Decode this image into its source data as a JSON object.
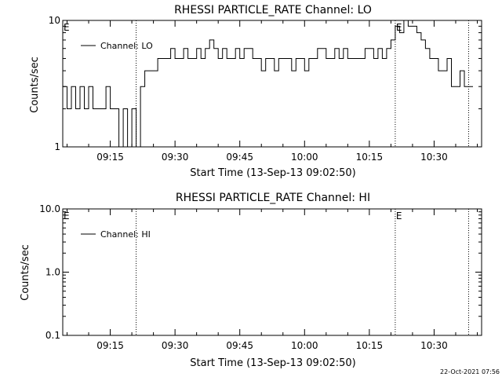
{
  "chart_data": [
    {
      "type": "line",
      "title": "RHESSI PARTICLE_RATE Channel: LO",
      "xlabel": "Start Time (13-Sep-13 09:02:50)",
      "ylabel": "Counts/sec",
      "yscale": "log",
      "ylim": [
        1,
        10
      ],
      "xlim": [
        "09:04",
        "10:41"
      ],
      "xticks": [
        "09:15",
        "09:30",
        "09:45",
        "10:00",
        "10:15",
        "10:30"
      ],
      "yticks": [
        "1",
        "10"
      ],
      "legend": {
        "entries": [
          "Channel: LO"
        ],
        "placement": "top-left"
      },
      "markers": [
        {
          "label": "E",
          "time": "09:04"
        },
        {
          "label": "",
          "time": "09:21"
        },
        {
          "label": "E",
          "time": "10:21"
        },
        {
          "label": "",
          "time": "10:38"
        }
      ],
      "series": [
        {
          "name": "Channel: LO",
          "step": true,
          "x": [
            "09:04",
            "09:05",
            "09:06",
            "09:07",
            "09:08",
            "09:09",
            "09:10",
            "09:11",
            "09:12",
            "09:13",
            "09:14",
            "09:15",
            "09:16",
            "09:17",
            "09:18",
            "09:19",
            "09:20",
            "09:21",
            "09:22",
            "09:23",
            "09:24",
            "09:25",
            "09:26",
            "09:27",
            "09:28",
            "09:29",
            "09:30",
            "09:31",
            "09:32",
            "09:33",
            "09:34",
            "09:35",
            "09:36",
            "09:37",
            "09:38",
            "09:39",
            "09:40",
            "09:41",
            "09:42",
            "09:43",
            "09:44",
            "09:45",
            "09:46",
            "09:47",
            "09:48",
            "09:49",
            "09:50",
            "09:51",
            "09:52",
            "09:53",
            "09:54",
            "09:55",
            "09:56",
            "09:57",
            "09:58",
            "09:59",
            "10:00",
            "10:01",
            "10:02",
            "10:03",
            "10:04",
            "10:05",
            "10:06",
            "10:07",
            "10:08",
            "10:09",
            "10:10",
            "10:11",
            "10:12",
            "10:13",
            "10:14",
            "10:15",
            "10:16",
            "10:17",
            "10:18",
            "10:19",
            "10:20",
            "10:21",
            "10:22",
            "10:23",
            "10:24",
            "10:25",
            "10:26",
            "10:27",
            "10:28",
            "10:29",
            "10:30",
            "10:31",
            "10:32",
            "10:33",
            "10:34",
            "10:35",
            "10:36",
            "10:37",
            "10:38"
          ],
          "values": [
            3,
            2,
            3,
            2,
            3,
            2,
            3,
            2,
            2,
            2,
            3,
            2,
            2,
            1,
            2,
            1,
            2,
            1,
            3,
            4,
            4,
            4,
            5,
            5,
            5,
            6,
            5,
            5,
            6,
            5,
            5,
            6,
            5,
            6,
            7,
            6,
            5,
            6,
            5,
            5,
            6,
            5,
            6,
            6,
            5,
            5,
            4,
            5,
            5,
            4,
            5,
            5,
            5,
            4,
            5,
            5,
            4,
            5,
            5,
            6,
            6,
            5,
            5,
            6,
            5,
            6,
            5,
            5,
            5,
            5,
            6,
            6,
            5,
            6,
            5,
            6,
            7,
            9,
            8,
            10,
            9,
            9,
            8,
            7,
            6,
            5,
            5,
            4,
            4,
            5,
            3,
            3,
            4,
            3,
            3
          ]
        }
      ]
    },
    {
      "type": "line",
      "title": "RHESSI PARTICLE_RATE Channel: HI",
      "xlabel": "Start Time (13-Sep-13 09:02:50)",
      "ylabel": "Counts/sec",
      "yscale": "log",
      "ylim": [
        0.1,
        10
      ],
      "xlim": [
        "09:04",
        "10:41"
      ],
      "xticks": [
        "09:15",
        "09:30",
        "09:45",
        "10:00",
        "10:15",
        "10:30"
      ],
      "yticks": [
        "0.1",
        "1.0",
        "10.0"
      ],
      "legend": {
        "entries": [
          "Channel: HI"
        ],
        "placement": "top-left"
      },
      "markers": [
        {
          "label": "E",
          "time": "09:04"
        },
        {
          "label": "",
          "time": "09:21"
        },
        {
          "label": "E",
          "time": "10:21"
        },
        {
          "label": "",
          "time": "10:38"
        }
      ],
      "series": [
        {
          "name": "Channel: HI",
          "x": [],
          "values": []
        }
      ]
    }
  ],
  "footer": {
    "timestamp": "22-Oct-2021 07:56"
  },
  "colors": {
    "background": "#ffffff",
    "foreground": "#000000"
  }
}
